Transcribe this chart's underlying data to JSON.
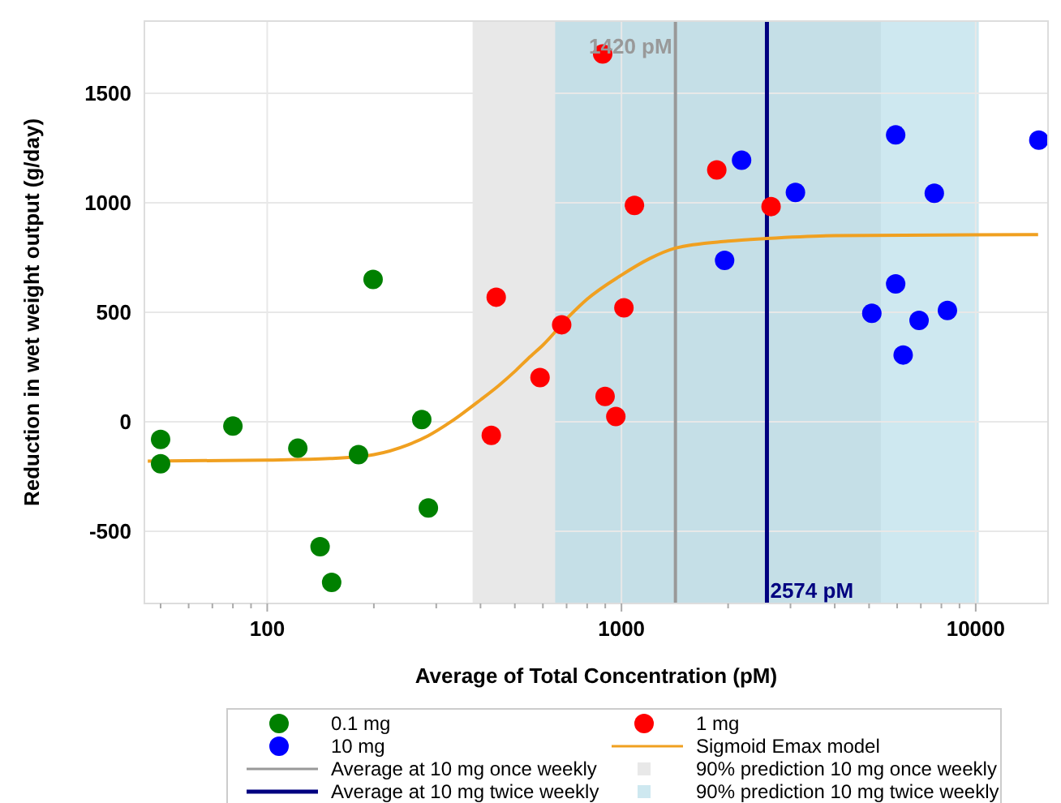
{
  "chart_data": {
    "type": "scatter",
    "xlabel": "Average of Total Concentration (pM)",
    "ylabel": "Reduction in wet weight output (g/day)",
    "log": "x",
    "grid": true,
    "legend": "bottom",
    "marker": "circle",
    "xlim": [
      45,
      16000
    ],
    "ylim": [
      -830,
      1830
    ],
    "xticks": [
      {
        "value": 50,
        "label": null
      },
      {
        "value": 60,
        "label": null
      },
      {
        "value": 70,
        "label": null
      },
      {
        "value": 80,
        "label": null
      },
      {
        "value": 90,
        "label": null
      },
      100,
      {
        "value": 200,
        "label": null
      },
      {
        "value": 300,
        "label": null
      },
      {
        "value": 400,
        "label": null
      },
      {
        "value": 500,
        "label": null
      },
      {
        "value": 600,
        "label": null
      },
      {
        "value": 700,
        "label": null
      },
      {
        "value": 800,
        "label": null
      },
      {
        "value": 900,
        "label": null
      },
      1000,
      {
        "value": 2000,
        "label": null
      },
      {
        "value": 3000,
        "label": null
      },
      {
        "value": 4000,
        "label": null
      },
      {
        "value": 5000,
        "label": null
      },
      {
        "value": 6000,
        "label": null
      },
      {
        "value": 7000,
        "label": null
      },
      {
        "value": 8000,
        "label": null
      },
      {
        "value": 9000,
        "label": null
      },
      10000
    ],
    "yticks": [
      -500,
      0,
      500,
      1000,
      1500
    ],
    "series": [
      {
        "name": "0.1 mg",
        "color": "#008000",
        "x": [
          50,
          50,
          80,
          122,
          141,
          152,
          181,
          199,
          273,
          285
        ],
        "values": [
          -81,
          -192,
          -20,
          -121,
          -571,
          -734,
          -150,
          650,
          10,
          -394
        ]
      },
      {
        "name": "1 mg",
        "color": "#ff0000",
        "x": [
          429,
          443,
          589,
          678,
          885,
          899,
          964,
          1016,
          1088,
          1858,
          2644
        ],
        "values": [
          -62,
          569,
          202,
          443,
          1680,
          116,
          24,
          520,
          988,
          1150,
          983
        ]
      },
      {
        "name": "10 mg",
        "color": "#0000ff",
        "x": [
          1955,
          2183,
          3098,
          5090,
          5943,
          5943,
          6240,
          6920,
          7640,
          8320,
          15070
        ],
        "values": [
          737,
          1195,
          1047,
          495,
          1310,
          630,
          305,
          463,
          1044,
          508,
          1286
        ]
      },
      {
        "name": "Sigmoid Emax model",
        "type": "line",
        "marker": "none",
        "line_style": "solid",
        "color": "#f0a020",
        "x": [
          46,
          100,
          150,
          200,
          250,
          284,
          330,
          400,
          450,
          500,
          546,
          600,
          720,
          800,
          1000,
          1200,
          1420,
          2000,
          2574,
          4000,
          15000
        ],
        "values": [
          -180,
          -175,
          -168,
          -150,
          -105,
          -65,
          0,
          100,
          165,
          230,
          290,
          350,
          490,
          560,
          670,
          745,
          793,
          825,
          837,
          850,
          855
        ]
      }
    ],
    "ref_lines": [
      {
        "axis": "x",
        "value": 1420,
        "label": "Average at 10 mg once weekly",
        "color": "#999999"
      },
      {
        "axis": "x",
        "value": 2574,
        "label": "Average at 10 mg twice weekly",
        "color": "#000080"
      }
    ],
    "bands": [
      {
        "axis": "x",
        "from": 380,
        "to": 5400,
        "label": "90% prediction 10 mg once weekly",
        "color": "#d9d9d9"
      },
      {
        "axis": "x",
        "from": 650,
        "to": 10200,
        "label": "90% prediction 10 mg twice weekly",
        "color": "#add8e6"
      }
    ],
    "annotations": [
      {
        "text": "1420 pM",
        "x": 1420,
        "y": 1680
      },
      {
        "text": "2574 pM",
        "x": 2574,
        "y": -760
      }
    ]
  }
}
